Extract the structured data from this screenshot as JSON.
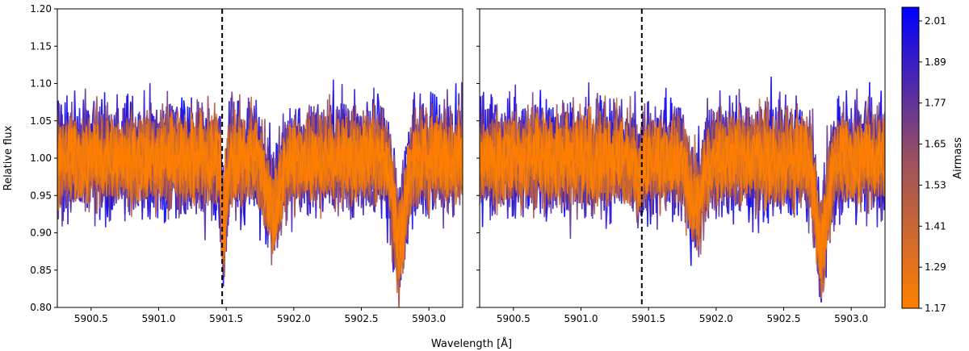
{
  "chart_data": {
    "type": "line",
    "description_series": "overlapping stellar spectra over many exposures, colored by airmass",
    "xlabel": "Wavelength [Å]",
    "ylabel": "Relative flux",
    "xlim": [
      5900.25,
      5903.25
    ],
    "ylim": [
      0.8,
      1.2
    ],
    "xticks": [
      5900.5,
      5901.0,
      5901.5,
      5902.0,
      5902.5,
      5903.0
    ],
    "xtick_labels": [
      "5900.5",
      "5901.0",
      "5901.5",
      "5902.0",
      "5902.5",
      "5903.0"
    ],
    "yticks": [
      0.8,
      0.85,
      0.9,
      0.95,
      1.0,
      1.05,
      1.1,
      1.15,
      1.2
    ],
    "ytick_labels": [
      "0.80",
      "0.85",
      "0.90",
      "0.95",
      "1.00",
      "1.05",
      "1.10",
      "1.15",
      "1.20"
    ],
    "panels": [
      {
        "name": "left",
        "vline_x": 5901.47,
        "absorption_lines": [
          {
            "center": 5901.48,
            "depth": 0.12,
            "width": 0.015
          },
          {
            "center": 5901.85,
            "depth": 0.07,
            "width": 0.05
          },
          {
            "center": 5902.78,
            "depth": 0.13,
            "width": 0.04
          }
        ]
      },
      {
        "name": "right",
        "vline_x": 5901.45,
        "absorption_lines": [
          {
            "center": 5901.43,
            "depth": 0.03,
            "width": 0.02
          },
          {
            "center": 5901.85,
            "depth": 0.07,
            "width": 0.05
          },
          {
            "center": 5902.78,
            "depth": 0.13,
            "width": 0.04
          }
        ]
      }
    ],
    "colorbar": {
      "label": "Airmass",
      "range": [
        1.17,
        2.05
      ],
      "ticks": [
        1.17,
        1.29,
        1.41,
        1.53,
        1.65,
        1.77,
        1.89,
        2.01
      ],
      "tick_labels": [
        "1.17",
        "1.29",
        "1.41",
        "1.53",
        "1.65",
        "1.77",
        "1.89",
        "2.01"
      ],
      "color_low": "#ff8000",
      "color_mid": "#9a5060",
      "color_high": "#0000ff"
    },
    "n_exposures": 24,
    "noise_amplitude": 0.035
  }
}
